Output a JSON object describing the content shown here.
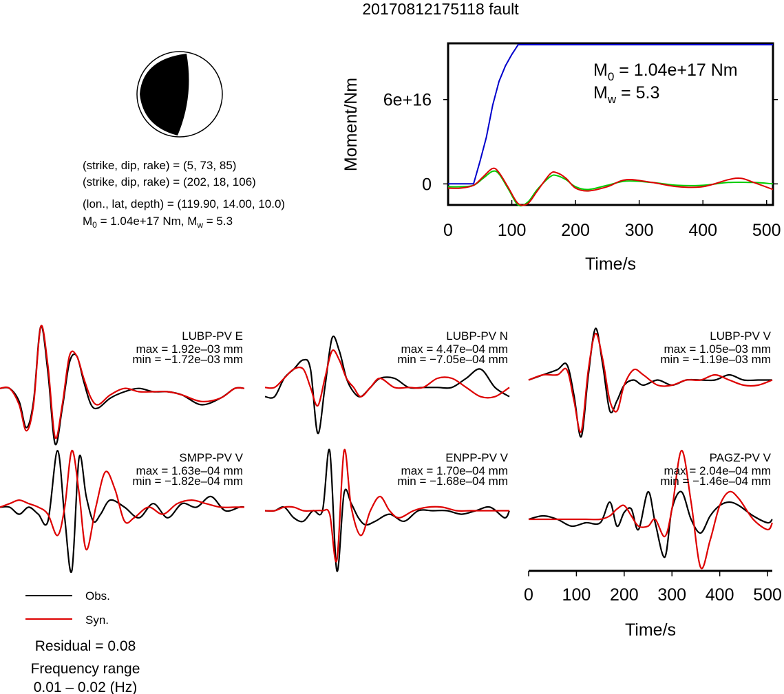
{
  "title": "20170812175118 fault",
  "focal": {
    "line1": "(strike, dip, rake) = (5, 73, 85)",
    "line2": "(strike, dip, rake) = (202, 18, 106)",
    "line3": "(lon., lat, depth) = (119.90, 14.00, 10.0)",
    "line4_m0": "M",
    "line4_m0_sub": "0",
    "line4_rest": " = 1.04e+17 Nm, M",
    "line4_w_sub": "w",
    "line4_end": " = 5.3"
  },
  "moment_annot": {
    "m0_label": "M",
    "m0_sub": "0",
    "m0_value": " = 1.04e+17 Nm",
    "mw_label": "M",
    "mw_sub": "w",
    "mw_value": " = 5.3"
  },
  "legend": {
    "obs": "Obs.",
    "syn": "Syn.",
    "residual": "Residual = 0.08",
    "freq_title": "Frequency range",
    "freq_value": "0.01 – 0.02 (Hz)"
  },
  "colors": {
    "obs": "#000000",
    "syn": "#dd0000",
    "moment": "#0000cc",
    "green": "#00cc00"
  },
  "chart_data": [
    {
      "type": "line",
      "ylabel": "Moment/Nm",
      "xlabel": "Time/s",
      "xlim": [
        0,
        510
      ],
      "ylim": [
        -1.5e+16,
        1e+17
      ],
      "xticks": [
        0,
        100,
        200,
        300,
        400,
        500
      ],
      "ytick_labels": [
        "0",
        "6e+16"
      ],
      "ytick_values": [
        0,
        6e+16
      ],
      "series": [
        {
          "color": "#0000cc",
          "x": [
            0,
            40,
            50,
            60,
            70,
            80,
            90,
            100,
            110,
            510
          ],
          "y": [
            0,
            0,
            1.6e+16,
            3.3e+16,
            5.6e+16,
            7.3e+16,
            8.4e+16,
            9.2e+16,
            9.9e+16,
            9.9e+16
          ]
        },
        {
          "color": "#00cc00",
          "x": [
            0,
            20,
            40,
            55,
            70,
            80,
            95,
            110,
            125,
            140,
            160,
            170,
            185,
            200,
            220,
            250,
            280,
            320,
            360,
            400,
            440,
            480,
            510
          ],
          "y": [
            -2000000000000000.0,
            -2000000000000000.0,
            -1000000000000000.0,
            4000000000000000.0,
            9000000000000000.0,
            7000000000000000.0,
            -4000000000000000.0,
            -1.5e+16,
            -1.3e+16,
            -4000000000000000.0,
            5000000000000000.0,
            6000000000000000.0,
            3000000000000000.0,
            -2000000000000000.0,
            -4000000000000000.0,
            -1000000000000000.0,
            2000000000000000.0,
            1000000000000000.0,
            -1000000000000000.0,
            -1000000000000000.0,
            1000000000000000.0,
            1000000000000000.0,
            0
          ]
        },
        {
          "color": "#dd0000",
          "x": [
            0,
            20,
            40,
            55,
            70,
            80,
            95,
            110,
            125,
            140,
            160,
            170,
            185,
            200,
            220,
            250,
            280,
            320,
            360,
            400,
            440,
            460,
            480,
            510
          ],
          "y": [
            -3000000000000000.0,
            -3000000000000000.0,
            -1000000000000000.0,
            5000000000000000.0,
            1.1e+16,
            8000000000000000.0,
            -3000000000000000.0,
            -1.4e+16,
            -1.4e+16,
            -5000000000000000.0,
            7000000000000000.0,
            8000000000000000.0,
            4000000000000000.0,
            -3000000000000000.0,
            -5000000000000000.0,
            -2000000000000000.0,
            3000000000000000.0,
            1000000000000000.0,
            -2000000000000000.0,
            -2000000000000000.0,
            3000000000000000.0,
            4000000000000000.0,
            1000000000000000.0,
            -4000000000000000.0
          ]
        }
      ]
    },
    {
      "type": "line",
      "panel": "LUBP-PV E",
      "max": "max = 1.92e–03 mm",
      "min": "min = −1.72e–03 mm",
      "xlim": [
        0,
        510
      ],
      "ylim": [
        -0.0018,
        0.002
      ],
      "series": [
        {
          "name": "Obs.",
          "color": "#000000",
          "x": [
            0,
            20,
            40,
            55,
            70,
            85,
            100,
            115,
            130,
            145,
            160,
            175,
            190,
            205,
            230,
            260,
            290,
            320,
            350,
            380,
            420,
            460,
            490,
            510
          ],
          "y": [
            0,
            0,
            -0.0004,
            -0.0012,
            -0.0004,
            0.0019,
            0.0005,
            -0.0017,
            -0.0006,
            0.0008,
            0.001,
            0.0002,
            -0.0005,
            -0.0006,
            -0.0003,
            -0.0001,
            0,
            -0.0001,
            -0.0001,
            -0.0002,
            -0.0005,
            -0.0003,
            0,
            0
          ]
        },
        {
          "name": "Syn.",
          "color": "#dd0000",
          "x": [
            0,
            20,
            40,
            55,
            70,
            85,
            100,
            115,
            130,
            145,
            160,
            175,
            190,
            205,
            230,
            260,
            290,
            320,
            350,
            380,
            420,
            460,
            490,
            510
          ],
          "y": [
            0,
            0,
            -0.0005,
            -0.0013,
            -0.0005,
            0.0019,
            0.0007,
            -0.0015,
            -0.0005,
            0.001,
            0.001,
            0.0003,
            -0.0003,
            -0.0005,
            -0.0002,
            0,
            -0.0001,
            -0.0001,
            -0.0001,
            -0.0002,
            -0.0004,
            -0.0003,
            0,
            0
          ]
        }
      ]
    },
    {
      "type": "line",
      "panel": "LUBP-PV N",
      "max": "max = 4.47e–04 mm",
      "min": "min = −7.05e–04 mm",
      "xlim": [
        0,
        510
      ],
      "ylim": [
        -0.00075,
        0.0006
      ],
      "series": [
        {
          "name": "Obs.",
          "color": "#000000",
          "x": [
            0,
            20,
            40,
            60,
            80,
            95,
            110,
            125,
            140,
            155,
            170,
            185,
            200,
            220,
            240,
            270,
            300,
            330,
            360,
            390,
            420,
            450,
            480,
            510
          ],
          "y": [
            -0.0002,
            -0.0002,
            0,
            0.0001,
            0.0002,
            0.0001,
            -0.0006,
            -0.0001,
            0.00044,
            0.0003,
            0,
            -0.00015,
            -0.0002,
            -0.0001,
            0,
            0,
            -0.0001,
            -0.0001,
            -0.0001,
            -0.0001,
            0,
            0.0001,
            -0.0001,
            -0.0002
          ]
        },
        {
          "name": "Syn.",
          "color": "#dd0000",
          "x": [
            0,
            20,
            40,
            60,
            80,
            95,
            110,
            125,
            140,
            155,
            170,
            185,
            200,
            220,
            240,
            270,
            300,
            330,
            360,
            390,
            420,
            450,
            480,
            510
          ],
          "y": [
            -0.0001,
            -0.0001,
            0,
            0.0001,
            0.0001,
            -0.0001,
            -0.0003,
            0,
            0.0003,
            0.0002,
            0,
            -0.0001,
            -0.0002,
            -0.0001,
            0,
            -0.0001,
            -0.0001,
            -0.0001,
            0,
            0,
            -0.0001,
            -0.0002,
            -0.0002,
            -0.0001
          ]
        }
      ]
    },
    {
      "type": "line",
      "panel": "LUBP-PV V",
      "max": "max = 1.05e–03 mm",
      "min": "min = −1.19e–03 mm",
      "xlim": [
        0,
        510
      ],
      "ylim": [
        -0.0013,
        0.0011
      ],
      "series": [
        {
          "name": "Obs.",
          "color": "#000000",
          "x": [
            0,
            30,
            60,
            80,
            95,
            110,
            125,
            140,
            155,
            170,
            185,
            200,
            220,
            240,
            270,
            300,
            330,
            360,
            390,
            420,
            450,
            480,
            510
          ],
          "y": [
            0,
            0.0001,
            0.0002,
            0.0003,
            -0.0003,
            -0.0011,
            0.0001,
            0.001,
            0.0003,
            -0.0006,
            -0.0004,
            -0.0001,
            0,
            -0.0001,
            0,
            -0.0001,
            0,
            0,
            0,
            0.0001,
            0,
            0,
            0
          ]
        },
        {
          "name": "Syn.",
          "color": "#dd0000",
          "x": [
            0,
            30,
            60,
            80,
            95,
            110,
            125,
            140,
            155,
            170,
            185,
            200,
            220,
            240,
            270,
            300,
            330,
            360,
            390,
            420,
            450,
            480,
            510
          ],
          "y": [
            0,
            0.0001,
            0.0001,
            0.0002,
            -0.0004,
            -0.001,
            0.0002,
            0.0009,
            0.0004,
            -0.0004,
            -0.0006,
            -0.0001,
            0.0002,
            0.0001,
            -0.0001,
            -0.0001,
            0,
            0,
            0.0001,
            0,
            -0.0001,
            -0.0001,
            0
          ]
        }
      ]
    },
    {
      "type": "line",
      "panel": "SMPP-PV V",
      "max": "max = 1.63e–04 mm",
      "min": "min = −1.82e–04 mm",
      "xlim": [
        0,
        510
      ],
      "ylim": [
        -0.00019,
        0.00017
      ],
      "series": [
        {
          "name": "Obs.",
          "color": "#000000",
          "x": [
            0,
            20,
            40,
            60,
            80,
            100,
            120,
            135,
            150,
            165,
            180,
            195,
            210,
            230,
            260,
            290,
            320,
            350,
            380,
            410,
            440,
            470,
            500,
            510
          ],
          "y": [
            0,
            0,
            -2e-05,
            0,
            -2e-05,
            -4e-05,
            0.00016,
            -3e-05,
            -0.00018,
            0.00014,
            3e-05,
            -4e-05,
            -2e-05,
            2e-05,
            0,
            -3e-05,
            1e-05,
            -3e-05,
            1e-05,
            0,
            3e-05,
            -1e-05,
            0,
            0
          ]
        },
        {
          "name": "Syn.",
          "color": "#dd0000",
          "x": [
            0,
            20,
            40,
            60,
            80,
            100,
            120,
            135,
            150,
            165,
            180,
            200,
            220,
            240,
            260,
            280,
            310,
            340,
            370,
            400,
            430,
            460,
            490,
            510
          ],
          "y": [
            0,
            1e-05,
            2e-05,
            1e-05,
            0,
            -2e-05,
            -8e-05,
            0,
            0.00016,
            4e-05,
            -0.00012,
            0,
            0.0001,
            5e-05,
            -4e-05,
            -3e-05,
            0,
            -2e-05,
            1e-05,
            2e-05,
            1e-05,
            0,
            0,
            0
          ]
        }
      ]
    },
    {
      "type": "line",
      "panel": "ENPP-PV V",
      "max": "max = 1.70e–04 mm",
      "min": "min = −1.68e–04 mm",
      "xlim": [
        0,
        510
      ],
      "ylim": [
        -0.00018,
        0.00018
      ],
      "series": [
        {
          "name": "Obs.",
          "color": "#000000",
          "x": [
            0,
            20,
            40,
            60,
            80,
            100,
            120,
            135,
            150,
            165,
            180,
            195,
            210,
            230,
            260,
            290,
            320,
            350,
            380,
            410,
            440,
            470,
            500,
            510
          ],
          "y": [
            0,
            0,
            1e-05,
            -2e-05,
            -3e-05,
            0,
            0,
            0.00017,
            -0.00017,
            5e-05,
            2e-05,
            -2e-05,
            -4e-05,
            -3e-05,
            -1e-05,
            -3e-05,
            0,
            0,
            0,
            -1e-05,
            0,
            1e-05,
            -2e-05,
            0
          ]
        },
        {
          "name": "Syn.",
          "color": "#dd0000",
          "x": [
            0,
            20,
            40,
            60,
            80,
            100,
            120,
            135,
            150,
            165,
            180,
            200,
            220,
            240,
            260,
            280,
            310,
            340,
            370,
            400,
            430,
            460,
            490,
            510
          ],
          "y": [
            0,
            0,
            1e-05,
            1e-05,
            0,
            0,
            0,
            -1e-05,
            -0.00014,
            0.00017,
            1e-05,
            -7e-05,
            0,
            4e-05,
            0,
            -2e-05,
            0,
            1e-05,
            1e-05,
            0,
            0,
            0,
            0,
            0
          ]
        }
      ]
    },
    {
      "type": "line",
      "panel": "PAGZ-PV V",
      "max": "max = 2.04e–04 mm",
      "min": "min = −1.46e–04 mm",
      "xlabel": "Time/s",
      "xlim": [
        0,
        510
      ],
      "ylim": [
        -0.00016,
        0.00021
      ],
      "xticks": [
        0,
        100,
        200,
        300,
        400,
        500
      ],
      "series": [
        {
          "name": "Obs.",
          "color": "#000000",
          "x": [
            0,
            30,
            60,
            90,
            120,
            150,
            170,
            185,
            200,
            215,
            230,
            250,
            265,
            285,
            300,
            320,
            340,
            360,
            380,
            400,
            420,
            440,
            470,
            500,
            510
          ],
          "y": [
            0,
            1e-05,
            0,
            -2e-05,
            -1e-05,
            -1e-05,
            5e-05,
            -2e-05,
            2e-05,
            3e-05,
            -3e-05,
            8e-05,
            -1e-05,
            -0.00011,
            3e-05,
            8e-05,
            0,
            -4e-05,
            1e-05,
            4e-05,
            5e-05,
            4e-05,
            1e-05,
            -1e-05,
            0
          ]
        },
        {
          "name": "Syn.",
          "color": "#dd0000",
          "x": [
            0,
            30,
            60,
            90,
            120,
            150,
            170,
            185,
            200,
            215,
            230,
            250,
            265,
            285,
            300,
            320,
            340,
            360,
            380,
            400,
            420,
            440,
            470,
            500,
            510
          ],
          "y": [
            0,
            0,
            0,
            0,
            0,
            0,
            1e-05,
            3e-05,
            4e-05,
            1e-05,
            -2e-05,
            -2e-05,
            0,
            -5e-05,
            3e-05,
            0.0002,
            5e-05,
            -0.00014,
            -6e-05,
            4e-05,
            8e-05,
            6e-05,
            0,
            -3e-05,
            -1e-05
          ]
        }
      ]
    }
  ]
}
